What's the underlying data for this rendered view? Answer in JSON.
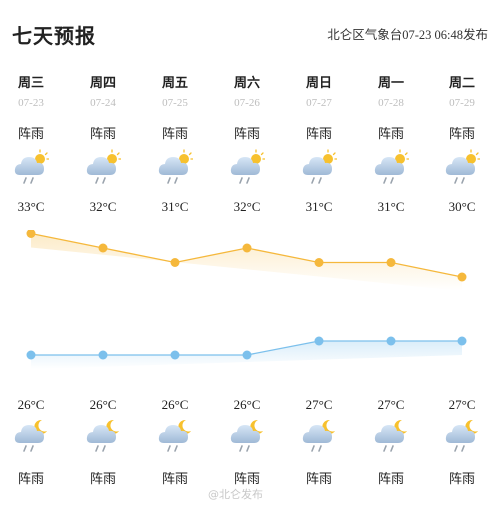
{
  "header": {
    "title": "七天预报",
    "source": "北仑区气象台",
    "issued": "07-23 06:48",
    "issued_suffix": "发布"
  },
  "days": [
    {
      "dow": "周三",
      "date": "07-23",
      "day_weather": "阵雨",
      "night_weather": "阵雨",
      "high": "33°C",
      "low": "26°C"
    },
    {
      "dow": "周四",
      "date": "07-24",
      "day_weather": "阵雨",
      "night_weather": "阵雨",
      "high": "32°C",
      "low": "26°C"
    },
    {
      "dow": "周五",
      "date": "07-25",
      "day_weather": "阵雨",
      "night_weather": "阵雨",
      "high": "31°C",
      "low": "26°C"
    },
    {
      "dow": "周六",
      "date": "07-26",
      "day_weather": "阵雨",
      "night_weather": "阵雨",
      "high": "32°C",
      "low": "26°C"
    },
    {
      "dow": "周日",
      "date": "07-27",
      "day_weather": "阵雨",
      "night_weather": "阵雨",
      "high": "31°C",
      "low": "27°C"
    },
    {
      "dow": "周一",
      "date": "07-28",
      "day_weather": "阵雨",
      "night_weather": "阵雨",
      "high": "31°C",
      "low": "27°C"
    },
    {
      "dow": "周二",
      "date": "07-29",
      "day_weather": "阵雨",
      "night_weather": "阵雨",
      "high": "30°C",
      "low": "27°C"
    }
  ],
  "chart_data": {
    "type": "line",
    "x": [
      "07-23",
      "07-24",
      "07-25",
      "07-26",
      "07-27",
      "07-28",
      "07-29"
    ],
    "series": [
      {
        "values": [
          33,
          32,
          31,
          32,
          31,
          31,
          30
        ],
        "color": "#f5b83c"
      },
      {
        "values": [
          26,
          26,
          26,
          26,
          27,
          27,
          27
        ],
        "color": "#7cc0ec"
      }
    ],
    "grid": false
  },
  "icons": {
    "day": "sun-cloud-rain-icon",
    "night": "moon-cloud-rain-icon"
  },
  "watermark": "@北仑发布"
}
